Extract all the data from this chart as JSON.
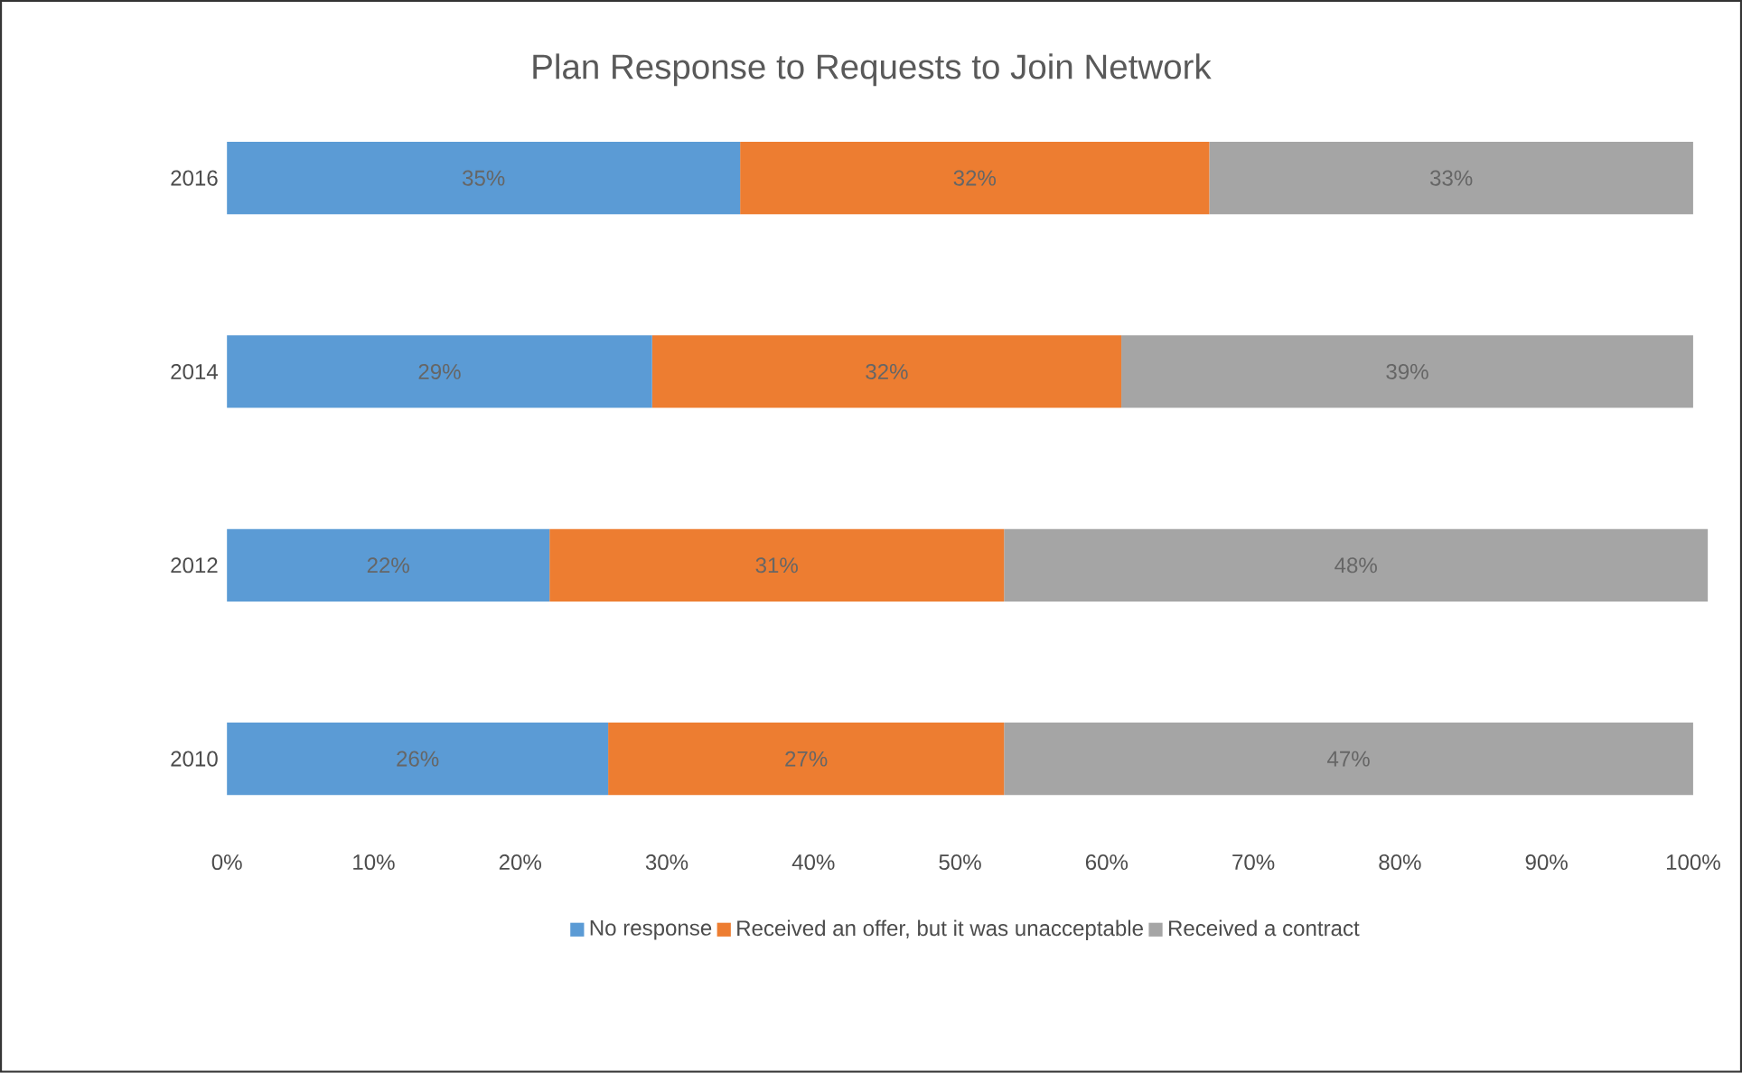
{
  "chart_data": {
    "type": "bar",
    "orientation": "horizontal",
    "stacked": true,
    "title": "Plan Response to Requests to Join Network",
    "categories": [
      "2016",
      "2014",
      "2012",
      "2010"
    ],
    "series": [
      {
        "name": "No response",
        "color": "#5b9bd5",
        "values": [
          35,
          29,
          22,
          26
        ],
        "value_labels": [
          "35%",
          "29%",
          "22%",
          "26%"
        ]
      },
      {
        "name": "Received an offer, but it was unacceptable",
        "color": "#ed7d31",
        "values": [
          32,
          32,
          31,
          27
        ],
        "value_labels": [
          "32%",
          "32%",
          "31%",
          "27%"
        ]
      },
      {
        "name": "Received a contract",
        "color": "#a5a5a5",
        "values": [
          33,
          39,
          48,
          47
        ],
        "value_labels": [
          "33%",
          "39%",
          "48%",
          "47%"
        ]
      }
    ],
    "xlim": [
      0,
      101
    ],
    "xticks": [
      {
        "value": 0,
        "label": "0%"
      },
      {
        "value": 10,
        "label": "10%"
      },
      {
        "value": 20,
        "label": "20%"
      },
      {
        "value": 30,
        "label": "30%"
      },
      {
        "value": 40,
        "label": "40%"
      },
      {
        "value": 50,
        "label": "50%"
      },
      {
        "value": 60,
        "label": "60%"
      },
      {
        "value": 70,
        "label": "70%"
      },
      {
        "value": 80,
        "label": "80%"
      },
      {
        "value": 90,
        "label": "90%"
      },
      {
        "value": 100,
        "label": "100%"
      }
    ],
    "legend": "bottom",
    "grid": false
  }
}
